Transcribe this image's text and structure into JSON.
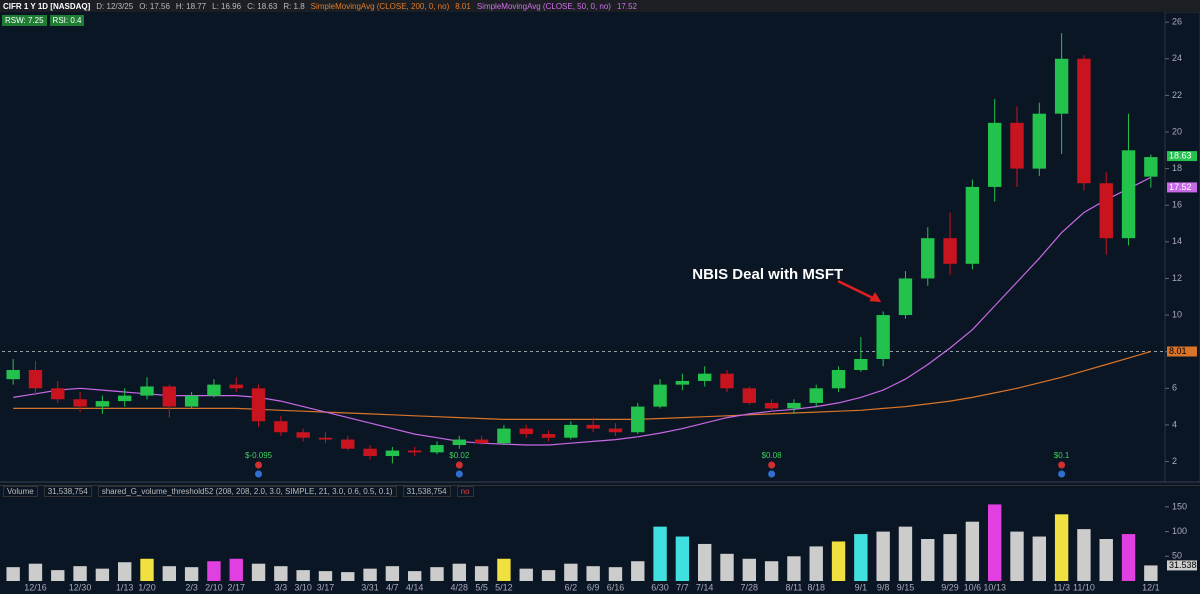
{
  "chart_data": {
    "type": "candlestick",
    "symbol": "CIFR 1 Y 1D [NASDAQ]",
    "quote": [
      "D: 12/3/25",
      "O: 17.56",
      "H: 18.77",
      "L: 16.96",
      "C: 18.63",
      "R: 1.8"
    ],
    "studies": [
      "RSW: 7.25",
      "RSI: 0.4"
    ],
    "annotation": {
      "text": "NBIS Deal with MSFT",
      "category": "9/8"
    },
    "categories": [
      null,
      "12/16",
      null,
      "12/30",
      null,
      "1/13",
      "1/20",
      null,
      "2/3",
      "2/10",
      "2/17",
      null,
      "3/3",
      "3/10",
      "3/17",
      null,
      "3/31",
      "4/7",
      "4/14",
      null,
      "4/28",
      "5/5",
      "5/12",
      null,
      null,
      "6/2",
      "6/9",
      "6/16",
      null,
      "6/30",
      "7/7",
      "7/14",
      null,
      "7/28",
      null,
      "8/11",
      "8/18",
      null,
      "9/1",
      "9/8",
      "9/15",
      null,
      "9/29",
      "10/6",
      "10/13",
      null,
      null,
      "11/3",
      "11/10",
      null,
      null,
      "12/1"
    ],
    "open": [
      6.5,
      7.0,
      6.0,
      5.4,
      5.0,
      5.3,
      5.6,
      6.1,
      5.0,
      5.6,
      6.2,
      6.0,
      4.2,
      3.6,
      3.3,
      3.2,
      2.7,
      2.3,
      2.6,
      2.5,
      2.9,
      3.2,
      3.0,
      3.8,
      3.5,
      3.3,
      4.0,
      3.8,
      3.6,
      5.0,
      6.2,
      6.4,
      6.8,
      6.0,
      5.2,
      4.9,
      5.2,
      6.0,
      7.0,
      7.6,
      10.0,
      12.0,
      14.2,
      12.8,
      17.0,
      20.5,
      18.0,
      21.0,
      24.0,
      17.2,
      14.2,
      17.56
    ],
    "high": [
      7.6,
      7.5,
      6.4,
      5.8,
      5.6,
      6.0,
      6.6,
      6.2,
      5.8,
      6.5,
      6.6,
      6.2,
      4.5,
      3.8,
      3.6,
      3.4,
      2.9,
      2.8,
      2.8,
      3.1,
      3.4,
      3.4,
      4.0,
      4.0,
      3.7,
      4.2,
      4.4,
      4.1,
      5.2,
      6.5,
      6.8,
      7.2,
      7.0,
      6.1,
      5.4,
      5.4,
      6.2,
      7.2,
      8.8,
      10.2,
      12.4,
      14.8,
      15.6,
      17.4,
      21.8,
      21.4,
      21.6,
      25.4,
      24.2,
      17.8,
      21.0,
      18.77
    ],
    "low": [
      6.2,
      5.6,
      5.2,
      4.7,
      4.6,
      5.0,
      5.4,
      4.4,
      4.9,
      5.5,
      5.8,
      3.9,
      3.4,
      3.1,
      3.0,
      2.6,
      2.1,
      1.9,
      2.3,
      2.4,
      2.7,
      2.9,
      2.9,
      3.3,
      3.1,
      3.2,
      3.6,
      3.4,
      3.5,
      4.9,
      5.9,
      6.1,
      5.8,
      5.1,
      4.7,
      4.6,
      5.0,
      5.8,
      6.9,
      7.2,
      9.8,
      11.6,
      12.2,
      12.5,
      16.2,
      17.0,
      17.6,
      18.8,
      16.8,
      13.3,
      13.8,
      16.96
    ],
    "close": [
      7.0,
      6.0,
      5.4,
      5.0,
      5.3,
      5.6,
      6.1,
      5.0,
      5.6,
      6.2,
      6.0,
      4.2,
      3.6,
      3.3,
      3.2,
      2.7,
      2.3,
      2.6,
      2.5,
      2.9,
      3.2,
      3.0,
      3.8,
      3.5,
      3.3,
      4.0,
      3.8,
      3.6,
      5.0,
      6.2,
      6.4,
      6.8,
      6.0,
      5.2,
      4.9,
      5.2,
      6.0,
      7.0,
      7.6,
      10.0,
      12.0,
      14.2,
      12.8,
      17.0,
      20.5,
      18.0,
      21.0,
      24.0,
      17.2,
      14.2,
      19.0,
      18.63
    ],
    "up_color": "#22c24c",
    "down_color": "#c8141e",
    "series": [
      {
        "name": "SimpleMovingAvg (CLOSE, 200, 0, no)",
        "color": "#d9752a",
        "values": [
          4.9,
          4.9,
          4.9,
          4.9,
          4.9,
          4.9,
          4.9,
          4.9,
          4.9,
          4.9,
          4.9,
          4.85,
          4.8,
          4.75,
          4.7,
          4.65,
          4.6,
          4.55,
          4.5,
          4.45,
          4.4,
          4.35,
          4.3,
          4.3,
          4.3,
          4.3,
          4.3,
          4.3,
          4.3,
          4.35,
          4.4,
          4.45,
          4.5,
          4.55,
          4.6,
          4.65,
          4.7,
          4.75,
          4.8,
          4.9,
          5.0,
          5.15,
          5.3,
          5.5,
          5.75,
          6.0,
          6.3,
          6.6,
          6.95,
          7.3,
          7.65,
          8.01
        ]
      },
      {
        "name": "SimpleMovingAvg (CLOSE, 50, 0, no)",
        "color": "#c768e6",
        "values": [
          5.5,
          5.7,
          5.9,
          6.0,
          5.9,
          5.8,
          5.7,
          5.6,
          5.6,
          5.6,
          5.6,
          5.5,
          5.3,
          5.0,
          4.7,
          4.4,
          4.1,
          3.8,
          3.5,
          3.3,
          3.1,
          3.0,
          2.95,
          2.9,
          2.9,
          3.0,
          3.1,
          3.2,
          3.35,
          3.55,
          3.8,
          4.1,
          4.4,
          4.6,
          4.75,
          4.85,
          5.0,
          5.2,
          5.5,
          5.9,
          6.5,
          7.3,
          8.2,
          9.2,
          10.5,
          11.8,
          13.1,
          14.5,
          15.6,
          16.3,
          16.9,
          17.52
        ]
      }
    ],
    "event_labels": [
      null,
      null,
      null,
      null,
      null,
      null,
      null,
      null,
      null,
      null,
      null,
      "$-0.095",
      null,
      null,
      null,
      null,
      null,
      null,
      null,
      null,
      "$0.02",
      null,
      null,
      null,
      null,
      null,
      null,
      null,
      null,
      null,
      null,
      null,
      null,
      null,
      "$0.08",
      null,
      null,
      null,
      null,
      null,
      null,
      null,
      null,
      null,
      null,
      null,
      null,
      "$0.1",
      null,
      null,
      null,
      null
    ],
    "ylim": [
      1.1,
      26.5
    ],
    "yticks": [
      2,
      4,
      6,
      8,
      10,
      12,
      14,
      16,
      18,
      20,
      22,
      24,
      26
    ],
    "grid": false,
    "volume": {
      "title": "Volume",
      "header": [
        "31,538,754",
        "shared_G_volume_threshold52 (208, 208, 2.0, 3.0, SIMPLE, 21, 3.0, 0.6, 0.5, 0.1)",
        "31,538,754",
        "no"
      ],
      "values": [
        28,
        35,
        22,
        30,
        25,
        38,
        45,
        30,
        28,
        40,
        45,
        35,
        30,
        22,
        20,
        18,
        25,
        30,
        20,
        28,
        35,
        30,
        45,
        25,
        22,
        35,
        30,
        28,
        40,
        110,
        90,
        75,
        55,
        45,
        40,
        50,
        70,
        80,
        95,
        100,
        110,
        85,
        95,
        120,
        155,
        100,
        90,
        135,
        105,
        85,
        95,
        31.5388
      ],
      "colors": [
        "#cccccc",
        "#cccccc",
        "#cccccc",
        "#cccccc",
        "#cccccc",
        "#cccccc",
        "#f0e040",
        "#cccccc",
        "#cccccc",
        "#e040e0",
        "#e040e0",
        "#cccccc",
        "#cccccc",
        "#cccccc",
        "#cccccc",
        "#cccccc",
        "#cccccc",
        "#cccccc",
        "#cccccc",
        "#cccccc",
        "#cccccc",
        "#cccccc",
        "#f0e040",
        "#cccccc",
        "#cccccc",
        "#cccccc",
        "#cccccc",
        "#cccccc",
        "#cccccc",
        "#40e0e0",
        "#40e0e0",
        "#cccccc",
        "#cccccc",
        "#cccccc",
        "#cccccc",
        "#cccccc",
        "#cccccc",
        "#f0e040",
        "#40e0e0",
        "#cccccc",
        "#cccccc",
        "#cccccc",
        "#cccccc",
        "#cccccc",
        "#e040e0",
        "#cccccc",
        "#cccccc",
        "#f0e040",
        "#cccccc",
        "#cccccc",
        "#e040e0",
        "#cccccc"
      ],
      "ylim": [
        0,
        170
      ],
      "yticks": [
        50,
        100,
        150
      ]
    }
  }
}
